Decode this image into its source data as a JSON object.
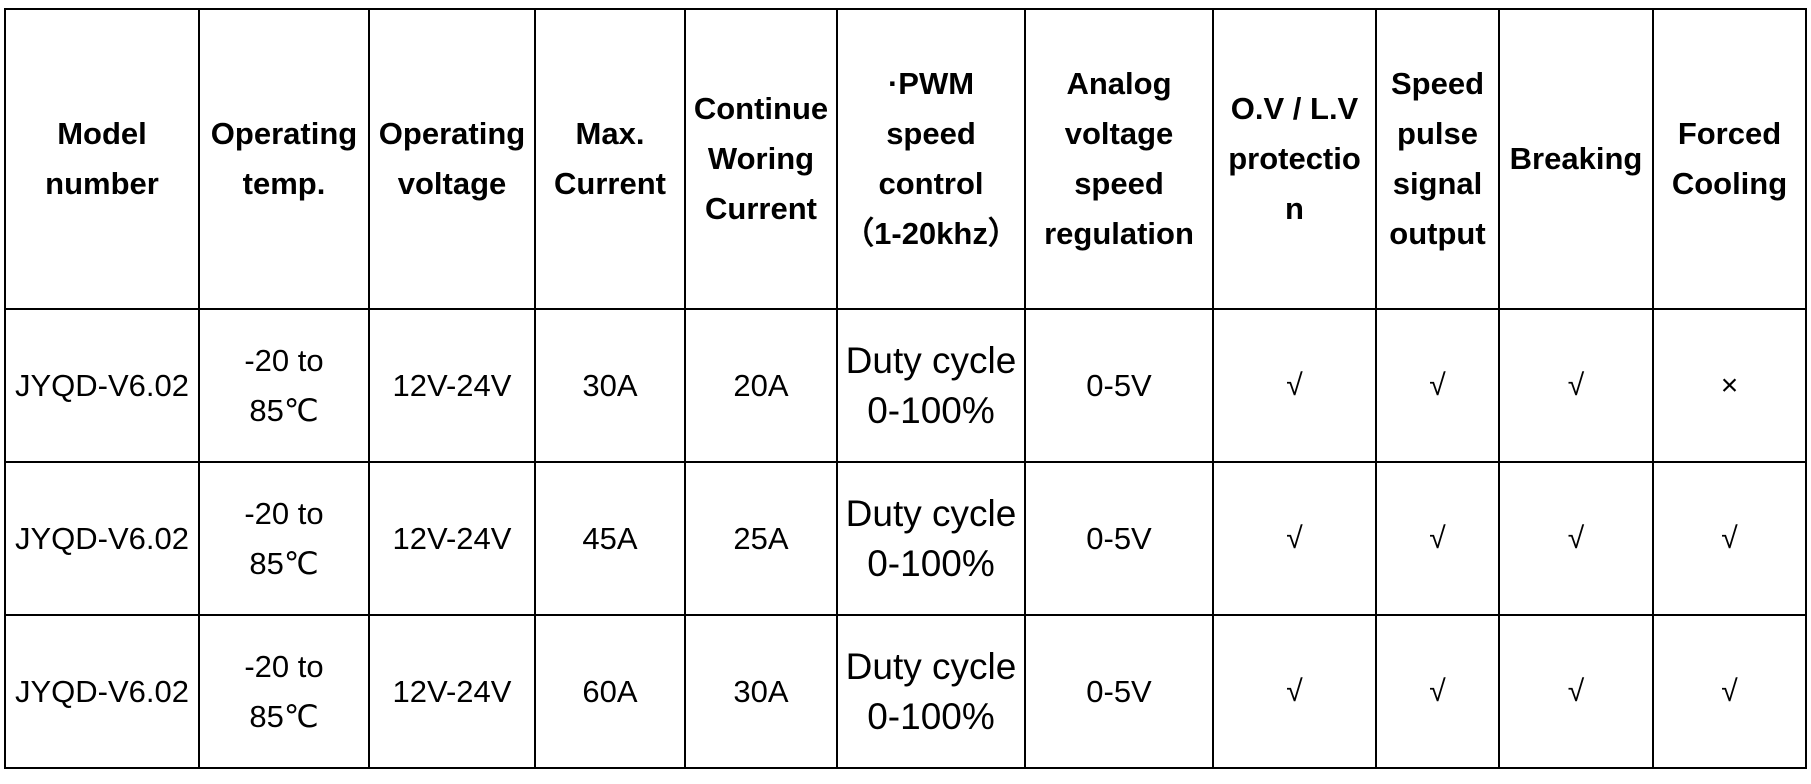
{
  "table": {
    "headers": [
      [
        "Model",
        "number"
      ],
      [
        "Operating",
        "temp."
      ],
      [
        "Operating",
        "voltage"
      ],
      [
        "Max.",
        "Current"
      ],
      [
        "Continue",
        "Woring",
        "Current"
      ],
      [
        "·PWM",
        "speed",
        "control",
        "（1-20khz）"
      ],
      [
        "Analog",
        "voltage",
        "speed",
        "regulation"
      ],
      [
        "O.V / L.V",
        "protectio",
        "n"
      ],
      [
        "Speed",
        "pulse",
        "signal",
        "output"
      ],
      [
        "Breaking"
      ],
      [
        "Forced",
        "Cooling"
      ]
    ],
    "rows": [
      {
        "model": "JYQD-V6.02",
        "temp": [
          "-20 to",
          "85℃"
        ],
        "voltage": "12V-24V",
        "max_current": "30A",
        "continue_current": "20A",
        "pwm": [
          "Duty cycle",
          "0-100%"
        ],
        "analog": "0-5V",
        "protection": "√",
        "pulse": "√",
        "breaking": "√",
        "cooling": "×"
      },
      {
        "model": "JYQD-V6.02",
        "temp": [
          "-20 to",
          "85℃"
        ],
        "voltage": "12V-24V",
        "max_current": "45A",
        "continue_current": "25A",
        "pwm": [
          "Duty cycle",
          "0-100%"
        ],
        "analog": "0-5V",
        "protection": "√",
        "pulse": "√",
        "breaking": "√",
        "cooling": "√"
      },
      {
        "model": "JYQD-V6.02",
        "temp": [
          "-20 to",
          "85℃"
        ],
        "voltage": "12V-24V",
        "max_current": "60A",
        "continue_current": "30A",
        "pwm": [
          "Duty cycle",
          "0-100%"
        ],
        "analog": "0-5V",
        "protection": "√",
        "pulse": "√",
        "breaking": "√",
        "cooling": "√"
      }
    ]
  }
}
